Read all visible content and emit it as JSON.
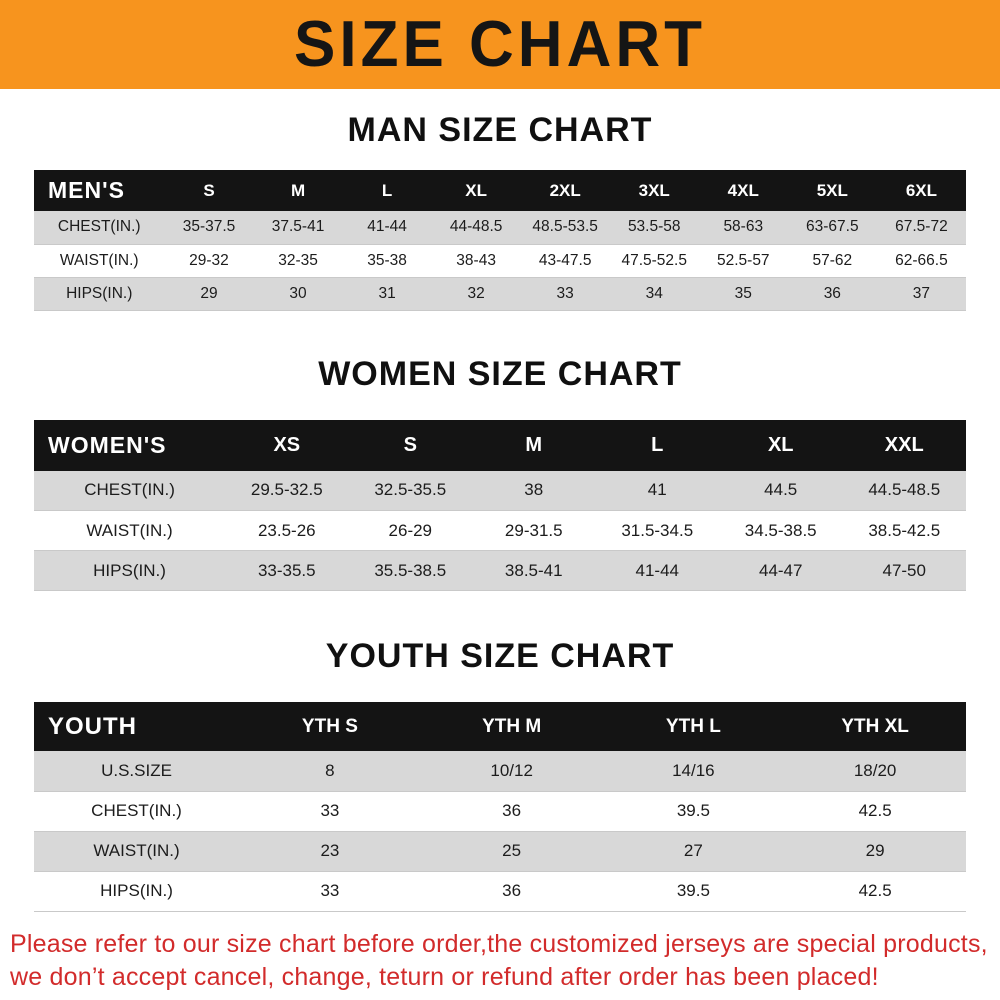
{
  "banner": {
    "title": "SIZE CHART",
    "background_color": "#f7941e",
    "text_color": "#151515"
  },
  "colors": {
    "table_header_bg": "#141414",
    "row_stripe": "#d8d8d8",
    "footer_text": "#d22b2b"
  },
  "sections": [
    {
      "heading": "MAN SIZE CHART",
      "table": {
        "header": [
          "MEN'S",
          "S",
          "M",
          "L",
          "XL",
          "2XL",
          "3XL",
          "4XL",
          "5XL",
          "6XL"
        ],
        "rows": [
          [
            "CHEST(IN.)",
            "35-37.5",
            "37.5-41",
            "41-44",
            "44-48.5",
            "48.5-53.5",
            "53.5-58",
            "58-63",
            "63-67.5",
            "67.5-72"
          ],
          [
            "WAIST(IN.)",
            "29-32",
            "32-35",
            "35-38",
            "38-43",
            "43-47.5",
            "47.5-52.5",
            "52.5-57",
            "57-62",
            "62-66.5"
          ],
          [
            "HIPS(IN.)",
            "29",
            "30",
            "31",
            "32",
            "33",
            "34",
            "35",
            "36",
            "37"
          ]
        ]
      }
    },
    {
      "heading": "WOMEN SIZE CHART",
      "table": {
        "header": [
          "WOMEN'S",
          "XS",
          "S",
          "M",
          "L",
          "XL",
          "XXL"
        ],
        "rows": [
          [
            "CHEST(IN.)",
            "29.5-32.5",
            "32.5-35.5",
            "38",
            "41",
            "44.5",
            "44.5-48.5"
          ],
          [
            "WAIST(IN.)",
            "23.5-26",
            "26-29",
            "29-31.5",
            "31.5-34.5",
            "34.5-38.5",
            "38.5-42.5"
          ],
          [
            "HIPS(IN.)",
            "33-35.5",
            "35.5-38.5",
            "38.5-41",
            "41-44",
            "44-47",
            "47-50"
          ]
        ]
      }
    },
    {
      "heading": "YOUTH SIZE CHART",
      "table": {
        "header": [
          "YOUTH",
          "YTH S",
          "YTH M",
          "YTH L",
          "YTH XL"
        ],
        "rows": [
          [
            "U.S.SIZE",
            "8",
            "10/12",
            "14/16",
            "18/20"
          ],
          [
            "CHEST(IN.)",
            "33",
            "36",
            "39.5",
            "42.5"
          ],
          [
            "WAIST(IN.)",
            "23",
            "25",
            "27",
            "29"
          ],
          [
            "HIPS(IN.)",
            "33",
            "36",
            "39.5",
            "42.5"
          ]
        ]
      }
    }
  ],
  "footer": {
    "line1": "Please refer to our size chart before order,the customized jerseys are special products,",
    "line2": "we don’t accept cancel, change, teturn or refund after order has been placed!"
  }
}
